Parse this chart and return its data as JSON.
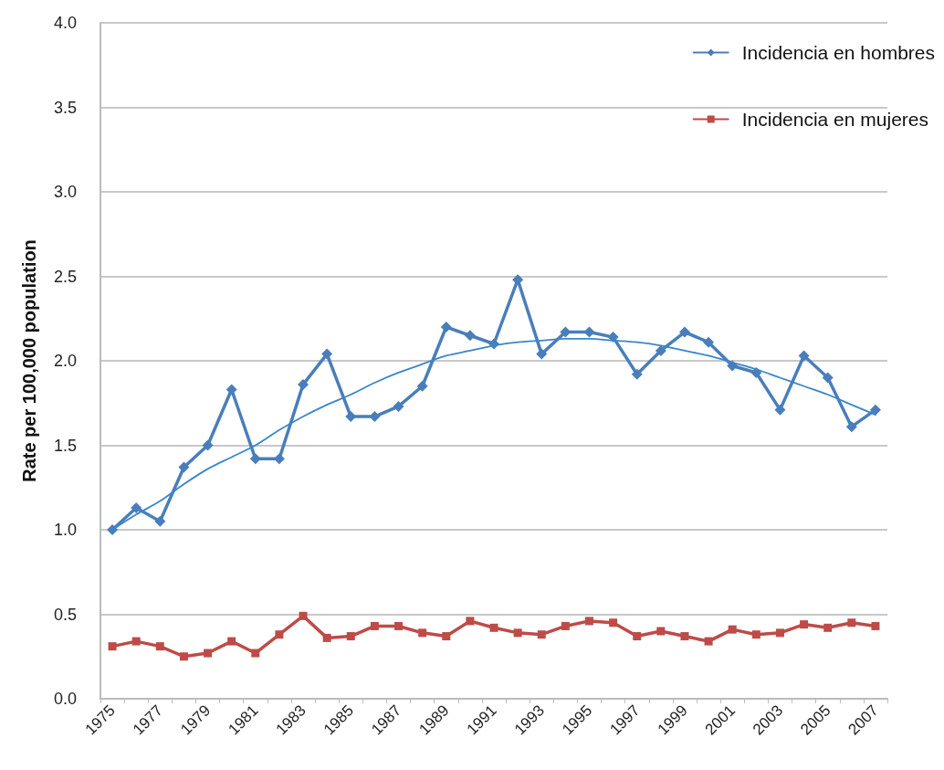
{
  "chart_data": {
    "type": "line",
    "ylabel": "Rate per 100,000 population",
    "categories": [
      "1975",
      null,
      "1977",
      null,
      "1979",
      null,
      "1981",
      null,
      "1983",
      null,
      "1985",
      null,
      "1987",
      null,
      "1989",
      null,
      "1991",
      null,
      "1993",
      null,
      "1995",
      null,
      "1997",
      null,
      "1999",
      null,
      "2001",
      null,
      "2003",
      null,
      "2005",
      null,
      "2007"
    ],
    "series": [
      {
        "name": "Incidencia en hombres",
        "color": "#4a7ebb",
        "marker": "diamond",
        "values": [
          1.0,
          1.13,
          1.05,
          1.37,
          1.5,
          1.83,
          1.42,
          1.42,
          1.86,
          2.04,
          1.67,
          1.67,
          1.73,
          1.85,
          2.2,
          2.15,
          2.1,
          2.48,
          2.04,
          2.17,
          2.17,
          2.14,
          1.92,
          2.06,
          2.17,
          2.11,
          1.97,
          1.93,
          1.71,
          2.03,
          1.9,
          1.61,
          1.71
        ]
      },
      {
        "name": "Incidencia en mujeres",
        "color": "#be4b48",
        "marker": "square",
        "values": [
          0.31,
          0.34,
          0.31,
          0.25,
          0.27,
          0.34,
          0.27,
          0.38,
          0.49,
          0.36,
          0.37,
          0.43,
          0.43,
          0.39,
          0.37,
          0.46,
          0.42,
          0.39,
          0.38,
          0.43,
          0.46,
          0.45,
          0.37,
          0.4,
          0.37,
          0.34,
          0.41,
          0.38,
          0.39,
          0.44,
          0.42,
          0.45,
          0.43
        ]
      },
      {
        "color": "#3a86c8",
        "marker": "none",
        "values": [
          1.0,
          1.09,
          1.17,
          1.27,
          1.36,
          1.43,
          1.5,
          1.59,
          1.67,
          1.74,
          1.8,
          1.87,
          1.93,
          1.98,
          2.03,
          2.06,
          2.09,
          2.11,
          2.12,
          2.13,
          2.13,
          2.12,
          2.11,
          2.09,
          2.06,
          2.03,
          1.99,
          1.95,
          1.9,
          1.85,
          1.8,
          1.74,
          1.68
        ]
      }
    ],
    "ylim": [
      0,
      4
    ],
    "yticks": [
      {
        "value": 0,
        "label": "0.0"
      },
      0.5,
      {
        "value": 1,
        "label": "1.0"
      },
      1.5,
      {
        "value": 2,
        "label": "2.0"
      },
      2.5,
      {
        "value": 3,
        "label": "3.0"
      },
      3.5,
      {
        "value": 4,
        "label": "4.0"
      }
    ],
    "grid": "y",
    "legend": "top right",
    "line_style": "solid"
  }
}
